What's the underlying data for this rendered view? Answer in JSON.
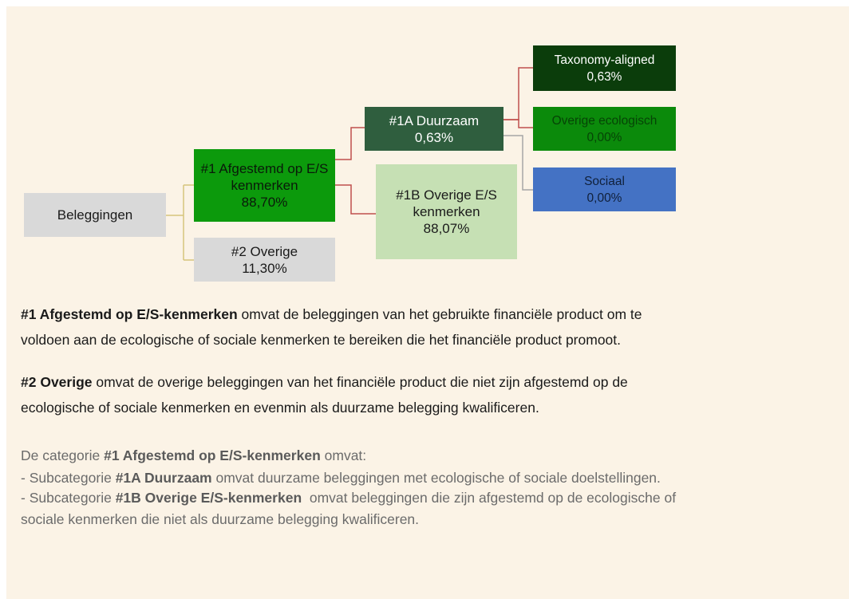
{
  "nodes": [
    {
      "label": "Beleggingen"
    },
    {
      "label": "#1 Afgestemd op E/S kenmerken",
      "value": "88,70%"
    },
    {
      "label": "#2 Overige",
      "value": "11,30%"
    },
    {
      "label": "#1A Duurzaam",
      "value": "0,63%"
    },
    {
      "label": "#1B Overige E/S kenmerken",
      "value": "88,07%"
    },
    {
      "label": "Taxonomy-aligned",
      "value": "0,63%"
    },
    {
      "label": "Overige ecologisch",
      "value": "0,00%"
    },
    {
      "label": "Sociaal",
      "value": "0,00%"
    }
  ],
  "paragraphs": [
    {
      "lines": [
        [
          {
            "b": "#1 Afgestemd op E/S-kenmerken"
          },
          {
            "t": " omvat de beleggingen van het gebruikte financiële product om te"
          }
        ],
        [
          {
            "t": "voldoen aan de ecologische of sociale kenmerken te bereiken die het financiële product promoot."
          }
        ]
      ]
    },
    {
      "lines": [
        [
          {
            "b": "#2 Overige"
          },
          {
            "t": " omvat de overige beleggingen van het financiële product die niet zijn afgestemd op de"
          }
        ],
        [
          {
            "t": "ecologische of sociale kenmerken en evenmin als duurzame belegging kwalificeren."
          }
        ]
      ]
    },
    {
      "lines": [
        [
          {
            "t": "De categorie "
          },
          {
            "b": "#1 Afgestemd op E/S-kenmerken"
          },
          {
            "t": " omvat:"
          }
        ],
        [
          {
            "t": "- Subcategorie "
          },
          {
            "b": "#1A Duurzaam"
          },
          {
            "t": " omvat duurzame beleggingen met ecologische of sociale doelstellingen."
          }
        ],
        [
          {
            "t": "- Subcategorie "
          },
          {
            "b": "#1B Overige E/S-kenmerken"
          },
          {
            "t": "  omvat beleggingen die zijn afgestemd op de ecologische of"
          }
        ],
        [
          {
            "t": "sociale kenmerken die niet als duurzame belegging kwalificeren."
          }
        ]
      ]
    }
  ]
}
